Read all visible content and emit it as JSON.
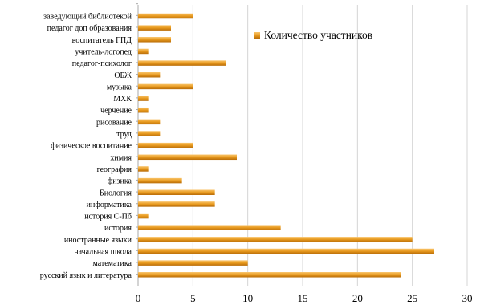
{
  "chart_data": {
    "type": "bar",
    "orientation": "horizontal",
    "categories": [
      "заведующий библиотекой",
      "педагог доп образования",
      "воспитатель ГПД",
      "учитель-логопед",
      "педагог-психолог",
      "ОБЖ",
      "музыка",
      "МХК",
      "черчение",
      "рисование",
      "труд",
      "физическое воспитание",
      "химия",
      "география",
      "физика",
      "Биология",
      "информатика",
      "история С-Пб",
      "история",
      "иностранные языки",
      "начальная школа",
      "математика",
      "русский язык и литература"
    ],
    "series": [
      {
        "name": "Количество участников",
        "values": [
          5,
          3,
          3,
          1,
          8,
          2,
          5,
          1,
          1,
          2,
          2,
          5,
          9,
          1,
          4,
          7,
          7,
          1,
          13,
          25,
          27,
          10,
          24
        ]
      }
    ],
    "xlim": [
      0,
      30
    ],
    "xticks": [
      0,
      5,
      10,
      15,
      20,
      25,
      30
    ],
    "xticklabels": [
      "0",
      "5",
      "10",
      "15",
      "20",
      "25",
      "30"
    ],
    "grid": true,
    "legend_position": "top-right",
    "colors": {
      "bar_light": "#f9c46a",
      "bar_mid": "#e89a1e",
      "bar_dark": "#b86c08",
      "grid": "#d4d4d4",
      "axis": "#a8a8a8"
    }
  }
}
